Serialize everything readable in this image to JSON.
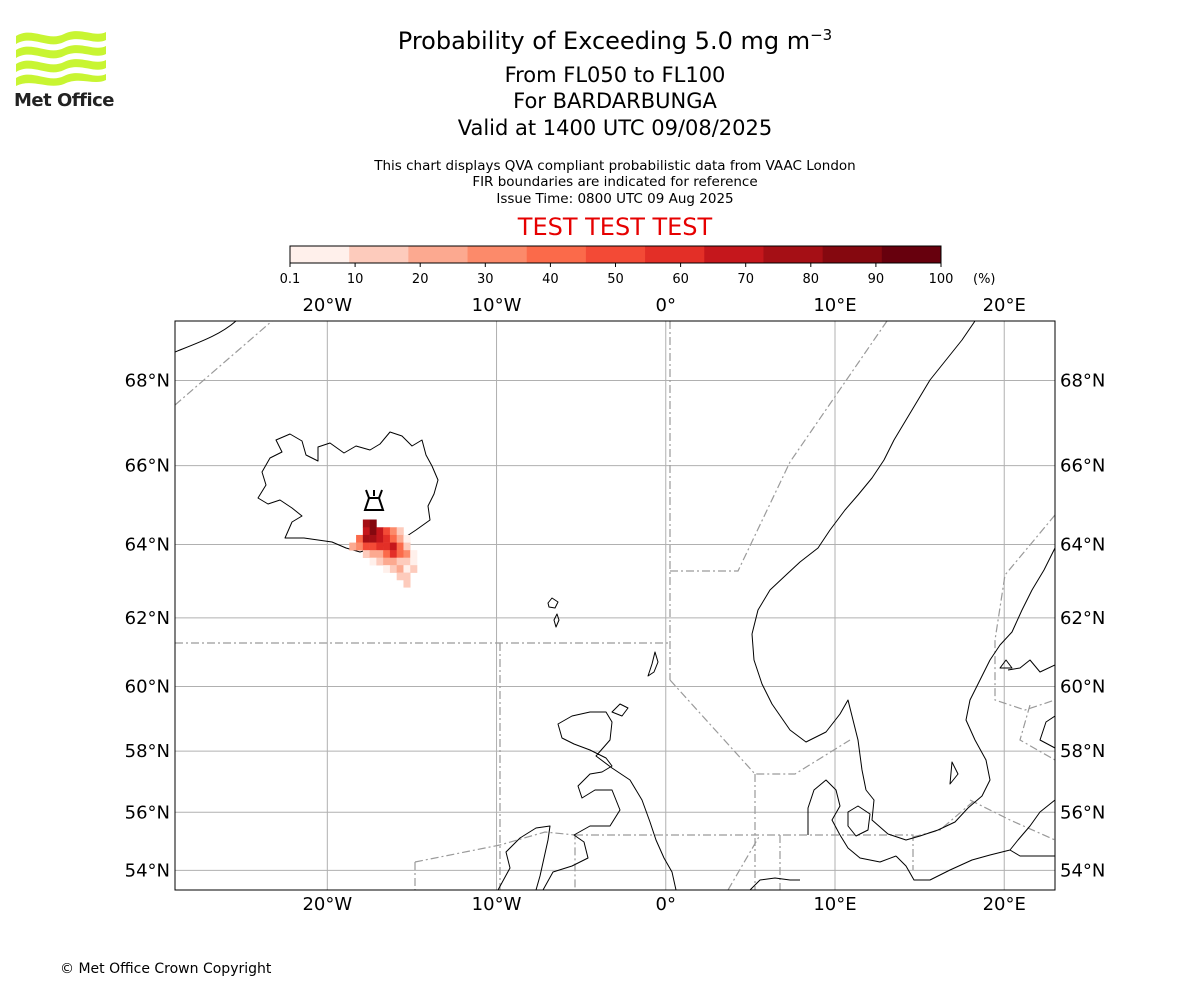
{
  "header": {
    "title_prefix": "Probability of Exceeding 5.0 mg m",
    "title_exponent": "−3",
    "level_range": "From FL050 to FL100",
    "volcano": "For BARDARBUNGA",
    "valid_time": "Valid at 1400 UTC 09/08/2025",
    "info_line1": "This chart displays QVA compliant probabilistic data from VAAC London",
    "info_line2": "FIR boundaries are indicated for reference",
    "issue_time": "Issue Time: 0800 UTC 09 Aug 2025",
    "test_banner": "TEST TEST TEST"
  },
  "logo": {
    "name": "Met Office",
    "color": "#c8f532"
  },
  "colorbar": {
    "ticks": [
      "0.1",
      "10",
      "20",
      "30",
      "40",
      "50",
      "60",
      "70",
      "80",
      "90",
      "100"
    ],
    "unit": "(%)",
    "colors": [
      "#fff0eb",
      "#fdcbbc",
      "#fca990",
      "#fc8a6a",
      "#fb6a4a",
      "#f34a36",
      "#e32f27",
      "#c5171c",
      "#a50f15",
      "#85080f",
      "#67000d"
    ]
  },
  "map": {
    "lon_labels": [
      "20°W",
      "10°W",
      "0°",
      "10°E",
      "20°E"
    ],
    "lat_labels": [
      "68°N",
      "66°N",
      "64°N",
      "62°N",
      "60°N",
      "58°N",
      "56°N",
      "54°N"
    ],
    "lon_range": [
      -29,
      23
    ],
    "lat_range": [
      53.3,
      69.3
    ],
    "volcano_position_deg": [
      -17.5,
      64.6
    ],
    "probability_cells_percent": [
      {
        "lon": -17.7,
        "lat": 64.55,
        "p": 85
      },
      {
        "lon": -17.3,
        "lat": 64.55,
        "p": 95
      },
      {
        "lon": -17.7,
        "lat": 64.35,
        "p": 75
      },
      {
        "lon": -17.3,
        "lat": 64.35,
        "p": 90
      },
      {
        "lon": -16.9,
        "lat": 64.35,
        "p": 70
      },
      {
        "lon": -16.5,
        "lat": 64.35,
        "p": 55
      },
      {
        "lon": -16.1,
        "lat": 64.35,
        "p": 35
      },
      {
        "lon": -15.7,
        "lat": 64.35,
        "p": 15
      },
      {
        "lon": -18.1,
        "lat": 64.15,
        "p": 45
      },
      {
        "lon": -17.7,
        "lat": 64.15,
        "p": 80
      },
      {
        "lon": -17.3,
        "lat": 64.15,
        "p": 85
      },
      {
        "lon": -16.9,
        "lat": 64.15,
        "p": 75
      },
      {
        "lon": -16.5,
        "lat": 64.15,
        "p": 60
      },
      {
        "lon": -16.1,
        "lat": 64.15,
        "p": 45
      },
      {
        "lon": -15.7,
        "lat": 64.15,
        "p": 25
      },
      {
        "lon": -15.3,
        "lat": 64.15,
        "p": 8
      },
      {
        "lon": -18.5,
        "lat": 63.95,
        "p": 20
      },
      {
        "lon": -18.1,
        "lat": 63.95,
        "p": 35
      },
      {
        "lon": -17.7,
        "lat": 63.95,
        "p": 50
      },
      {
        "lon": -17.3,
        "lat": 63.95,
        "p": 55
      },
      {
        "lon": -16.9,
        "lat": 63.95,
        "p": 60
      },
      {
        "lon": -16.5,
        "lat": 63.95,
        "p": 65
      },
      {
        "lon": -16.1,
        "lat": 63.95,
        "p": 75
      },
      {
        "lon": -15.7,
        "lat": 63.95,
        "p": 40
      },
      {
        "lon": -15.3,
        "lat": 63.95,
        "p": 15
      },
      {
        "lon": -17.7,
        "lat": 63.75,
        "p": 15
      },
      {
        "lon": -17.3,
        "lat": 63.75,
        "p": 20
      },
      {
        "lon": -16.9,
        "lat": 63.75,
        "p": 25
      },
      {
        "lon": -16.5,
        "lat": 63.75,
        "p": 40
      },
      {
        "lon": -16.1,
        "lat": 63.75,
        "p": 65
      },
      {
        "lon": -15.7,
        "lat": 63.75,
        "p": 45
      },
      {
        "lon": -15.3,
        "lat": 63.75,
        "p": 30
      },
      {
        "lon": -14.9,
        "lat": 63.75,
        "p": 8
      },
      {
        "lon": -17.3,
        "lat": 63.55,
        "p": 8
      },
      {
        "lon": -16.9,
        "lat": 63.55,
        "p": 15
      },
      {
        "lon": -16.5,
        "lat": 63.55,
        "p": 20
      },
      {
        "lon": -16.1,
        "lat": 63.55,
        "p": 25
      },
      {
        "lon": -15.7,
        "lat": 63.55,
        "p": 15
      },
      {
        "lon": -15.3,
        "lat": 63.55,
        "p": 12
      },
      {
        "lon": -14.9,
        "lat": 63.55,
        "p": 8
      },
      {
        "lon": -16.5,
        "lat": 63.35,
        "p": 8
      },
      {
        "lon": -16.1,
        "lat": 63.35,
        "p": 10
      },
      {
        "lon": -15.7,
        "lat": 63.35,
        "p": 20
      },
      {
        "lon": -15.3,
        "lat": 63.35,
        "p": 8
      },
      {
        "lon": -14.9,
        "lat": 63.35,
        "p": 10
      },
      {
        "lon": -15.7,
        "lat": 63.15,
        "p": 10
      },
      {
        "lon": -15.3,
        "lat": 63.15,
        "p": 12
      },
      {
        "lon": -15.3,
        "lat": 62.95,
        "p": 12
      }
    ]
  },
  "footer": {
    "copyright": "© Met Office Crown Copyright"
  }
}
